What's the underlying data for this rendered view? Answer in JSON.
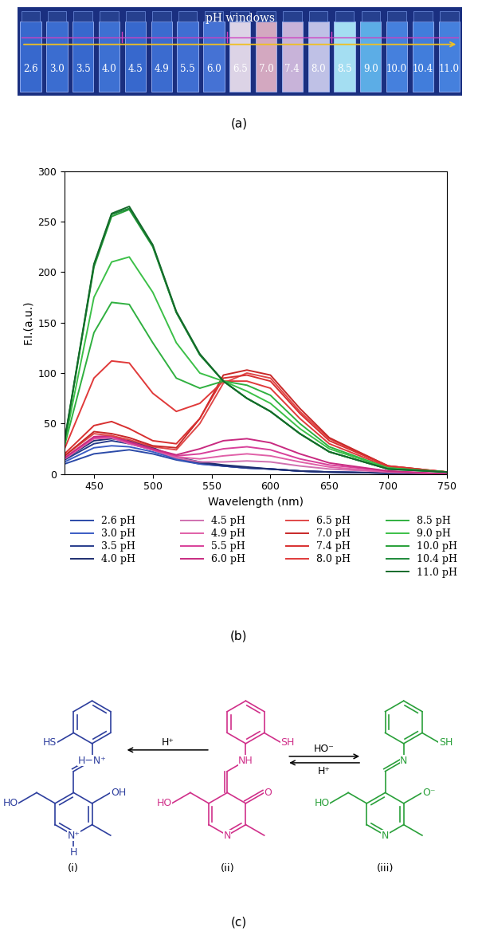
{
  "panel_a": {
    "label": "(a)",
    "title": "pH windows",
    "vials": [
      "2.6",
      "3.0",
      "3.5",
      "4.0",
      "4.5",
      "4.9",
      "5.5",
      "6.0",
      "6.5",
      "7.0",
      "7.4",
      "8.0",
      "8.5",
      "9.0",
      "10.0",
      "10.4",
      "11.0"
    ],
    "colors": [
      "#3b6fd6",
      "#3f74da",
      "#3b6fd6",
      "#4278dc",
      "#3b6fd6",
      "#3f72d8",
      "#4476dc",
      "#4a7ade",
      "#f2e6f2",
      "#e8b6c8",
      "#dcc2e4",
      "#d2d2f2",
      "#b4f2ff",
      "#64bcf2",
      "#4a8ae8",
      "#4686e6",
      "#4a8ae8"
    ]
  },
  "chart_data": {
    "type": "line",
    "label": "(b)",
    "x_label": "Wavelength (nm)",
    "y_label": "F.I.(a.u.)",
    "x": [
      425,
      450,
      465,
      480,
      500,
      520,
      540,
      560,
      580,
      600,
      625,
      650,
      700,
      750
    ],
    "xlim": [
      425,
      750
    ],
    "xticks": [
      450,
      500,
      550,
      600,
      650,
      700,
      750
    ],
    "ylim": [
      0,
      300
    ],
    "yticks": [
      0,
      50,
      100,
      150,
      200,
      250,
      300
    ],
    "series": [
      {
        "name": "2.6 pH",
        "color": "#2b4aa8",
        "values": [
          10,
          20,
          22,
          24,
          20,
          14,
          10,
          8,
          6,
          5,
          3,
          2,
          1,
          0
        ]
      },
      {
        "name": "3.0 pH",
        "color": "#3a5cc4",
        "values": [
          12,
          26,
          28,
          27,
          22,
          15,
          10,
          8,
          6,
          5,
          3,
          2,
          1,
          0
        ]
      },
      {
        "name": "3.5 pH",
        "color": "#283c8c",
        "values": [
          14,
          30,
          33,
          30,
          24,
          16,
          11,
          8,
          6,
          5,
          3,
          2,
          1,
          0
        ]
      },
      {
        "name": "4.0 pH",
        "color": "#1e2e70",
        "values": [
          15,
          33,
          35,
          33,
          26,
          17,
          12,
          9,
          7,
          5,
          3,
          2,
          1,
          0
        ]
      },
      {
        "name": "4.5 pH",
        "color": "#d070b0",
        "values": [
          15,
          35,
          36,
          30,
          24,
          16,
          12,
          12,
          13,
          12,
          8,
          5,
          2,
          0
        ]
      },
      {
        "name": "4.9 pH",
        "color": "#e060a8",
        "values": [
          15,
          35,
          36,
          30,
          24,
          17,
          15,
          18,
          20,
          18,
          12,
          7,
          2,
          0
        ]
      },
      {
        "name": "5.5 pH",
        "color": "#d8409a",
        "values": [
          16,
          36,
          37,
          31,
          24,
          18,
          20,
          25,
          27,
          24,
          15,
          9,
          3,
          0
        ]
      },
      {
        "name": "6.0 pH",
        "color": "#c82a80",
        "values": [
          16,
          37,
          38,
          32,
          25,
          19,
          25,
          33,
          35,
          31,
          20,
          11,
          3,
          0
        ]
      },
      {
        "name": "6.5 pH",
        "color": "#e04848",
        "values": [
          18,
          40,
          38,
          34,
          27,
          24,
          50,
          90,
          100,
          95,
          62,
          35,
          8,
          2
        ]
      },
      {
        "name": "7.0 pH",
        "color": "#c82828",
        "values": [
          18,
          42,
          40,
          36,
          28,
          26,
          55,
          98,
          103,
          98,
          65,
          36,
          8,
          2
        ]
      },
      {
        "name": "7.4 pH",
        "color": "#d83030",
        "values": [
          20,
          48,
          52,
          45,
          33,
          30,
          55,
          95,
          98,
          92,
          60,
          33,
          8,
          2
        ]
      },
      {
        "name": "8.0 pH",
        "color": "#e03a3a",
        "values": [
          25,
          95,
          112,
          110,
          80,
          62,
          70,
          92,
          92,
          85,
          55,
          30,
          7,
          2
        ]
      },
      {
        "name": "8.5 pH",
        "color": "#30b040",
        "values": [
          28,
          140,
          170,
          168,
          130,
          95,
          85,
          92,
          88,
          78,
          50,
          27,
          6,
          2
        ]
      },
      {
        "name": "9.0 pH",
        "color": "#3cc048",
        "values": [
          30,
          175,
          210,
          215,
          180,
          130,
          100,
          92,
          82,
          70,
          45,
          25,
          6,
          2
        ]
      },
      {
        "name": "10.0 pH",
        "color": "#28a038",
        "values": [
          32,
          205,
          255,
          262,
          225,
          160,
          118,
          92,
          75,
          62,
          40,
          22,
          5,
          2
        ]
      },
      {
        "name": "10.4 pH",
        "color": "#1e8a3a",
        "values": [
          32,
          207,
          257,
          263,
          226,
          160,
          118,
          92,
          75,
          62,
          40,
          22,
          5,
          2
        ]
      },
      {
        "name": "11.0 pH",
        "color": "#146a2a",
        "values": [
          33,
          208,
          258,
          265,
          227,
          161,
          119,
          92,
          75,
          62,
          40,
          22,
          5,
          2
        ]
      }
    ]
  },
  "panel_c": {
    "label": "(c)",
    "structures": [
      {
        "name": "(i)",
        "color": "#2e3f9e",
        "atoms": {
          "thiol": "HS",
          "imine": "H−N⁺",
          "oxygen": "OH",
          "hydroxymethyl": "HO",
          "ring_n": "N⁺",
          "ring_h": "H"
        }
      },
      {
        "name": "(ii)",
        "color": "#d0308a",
        "atoms": {
          "thiol": "SH",
          "imine": "NH",
          "oxygen": "O",
          "hydroxymethyl": "HO",
          "ring_n": "N"
        }
      },
      {
        "name": "(iii)",
        "color": "#2aa03a",
        "atoms": {
          "thiol": "SH",
          "imine": "N",
          "oxygen": "O⁻",
          "hydroxymethyl": "HO",
          "ring_n": "N"
        }
      }
    ],
    "arrows": [
      {
        "above": "H⁺"
      },
      {
        "above": "HO⁻",
        "below": "H⁺"
      }
    ]
  }
}
